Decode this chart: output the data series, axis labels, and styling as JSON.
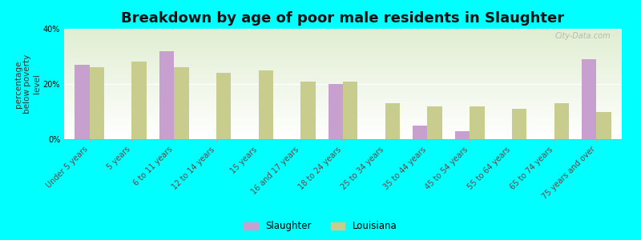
{
  "title": "Breakdown by age of poor male residents in Slaughter",
  "ylabel": "percentage\nbelow poverty\nlevel",
  "categories": [
    "Under 5 years",
    "5 years",
    "6 to 11 years",
    "12 to 14 years",
    "15 years",
    "16 and 17 years",
    "18 to 24 years",
    "25 to 34 years",
    "35 to 44 years",
    "45 to 54 years",
    "55 to 64 years",
    "65 to 74 years",
    "75 years and over"
  ],
  "slaughter_values": [
    27,
    0,
    32,
    0,
    0,
    0,
    20,
    0,
    5,
    3,
    0,
    0,
    29
  ],
  "louisiana_values": [
    26,
    28,
    26,
    24,
    25,
    21,
    21,
    13,
    12,
    12,
    11,
    13,
    10
  ],
  "slaughter_color": "#c8a0d0",
  "louisiana_color": "#c8cc8c",
  "background_color": "#00ffff",
  "ylim": [
    0,
    40
  ],
  "yticks": [
    0,
    20,
    40
  ],
  "ytick_labels": [
    "0%",
    "20%",
    "40%"
  ],
  "bar_width": 0.35,
  "title_fontsize": 13,
  "tick_label_fontsize": 7,
  "ylabel_fontsize": 7.5,
  "legend_labels": [
    "Slaughter",
    "Louisiana"
  ],
  "watermark": "City-Data.com"
}
